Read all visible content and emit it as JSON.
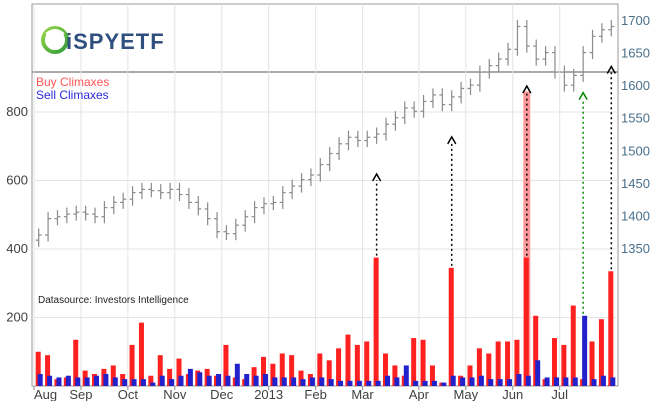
{
  "logo": {
    "text": "iSPYETF",
    "icon": "green-swirl-logo-icon"
  },
  "source_note": "Datasource: Investors Intelligence",
  "chart_data": {
    "type": "bar",
    "legend": {
      "placement": "top-left",
      "entries": [
        {
          "name": "Buy Climaxes",
          "color": "#ff3333"
        },
        {
          "name": "Sell Climaxes",
          "color": "#3333cc"
        }
      ]
    },
    "y_left": {
      "ticks": [
        "400",
        "600",
        "800"
      ],
      "tick_values": [
        400,
        600,
        800
      ]
    },
    "y_left_lower": {
      "ticks": [
        "200"
      ],
      "tick_values": [
        200
      ],
      "range": [
        0,
        400
      ]
    },
    "y_right": {
      "ticks": [
        "1350",
        "1400",
        "1450",
        "1500",
        "1550",
        "1600",
        "1650",
        "1700"
      ],
      "tick_values": [
        1350,
        1400,
        1450,
        1500,
        1550,
        1600,
        1650,
        1700
      ]
    },
    "x_ticks": [
      "Aug",
      "Sep",
      "Oct",
      "Nov",
      "Dec",
      "2013",
      "Feb",
      "Mar",
      "Apr",
      "May",
      "Jun",
      "Jul"
    ],
    "x_tick_weeks": [
      0,
      5,
      10,
      15,
      20,
      25,
      30,
      35,
      41,
      46,
      51,
      56
    ],
    "weeks": 62,
    "series": [
      {
        "name": "Buy Climaxes",
        "color": "#ff2020",
        "values": [
          100,
          90,
          20,
          25,
          135,
          45,
          35,
          50,
          60,
          35,
          120,
          185,
          30,
          90,
          50,
          80,
          35,
          45,
          50,
          30,
          120,
          25,
          20,
          55,
          85,
          65,
          95,
          90,
          45,
          35,
          95,
          75,
          110,
          150,
          120,
          130,
          375,
          95,
          60,
          30,
          140,
          135,
          60,
          10,
          345,
          30,
          60,
          110,
          95,
          130,
          130,
          135,
          375,
          205,
          20,
          140,
          120,
          235,
          20,
          130,
          195,
          335
        ]
      },
      {
        "name": "Sell Climaxes",
        "color": "#2222cc",
        "values": [
          35,
          30,
          25,
          30,
          25,
          25,
          30,
          35,
          25,
          20,
          20,
          20,
          10,
          30,
          20,
          30,
          50,
          40,
          30,
          35,
          30,
          65,
          35,
          30,
          35,
          25,
          25,
          25,
          20,
          25,
          25,
          20,
          15,
          15,
          15,
          15,
          15,
          30,
          25,
          60,
          15,
          15,
          15,
          10,
          30,
          25,
          25,
          30,
          20,
          20,
          20,
          35,
          30,
          75,
          25,
          25,
          25,
          25,
          205,
          20,
          30,
          25
        ]
      }
    ],
    "price_series": {
      "name": "SPY",
      "color": "#8a8a8a",
      "values": [
        1370,
        1395,
        1398,
        1402,
        1405,
        1402,
        1398,
        1412,
        1420,
        1425,
        1435,
        1440,
        1438,
        1435,
        1440,
        1432,
        1420,
        1410,
        1395,
        1375,
        1372,
        1385,
        1398,
        1412,
        1418,
        1420,
        1435,
        1445,
        1455,
        1462,
        1478,
        1495,
        1510,
        1520,
        1515,
        1520,
        1525,
        1540,
        1550,
        1565,
        1560,
        1575,
        1585,
        1570,
        1582,
        1595,
        1600,
        1620,
        1630,
        1640,
        1655,
        1690,
        1660,
        1640,
        1650,
        1620,
        1600,
        1615,
        1650,
        1675,
        1685,
        1690
      ]
    },
    "annotations": [
      {
        "type": "dotted-arrow",
        "week": 36,
        "color": "#000000"
      },
      {
        "type": "dotted-arrow",
        "week": 44,
        "color": "#000000"
      },
      {
        "type": "dotted-arrow",
        "week": 52,
        "color": "#000000"
      },
      {
        "type": "dotted-arrow",
        "week": 58,
        "color": "#008800"
      },
      {
        "type": "dotted-arrow",
        "week": 61,
        "color": "#000000"
      }
    ],
    "highlight": {
      "week": 52,
      "color": "#ff9999",
      "value": 860
    }
  }
}
